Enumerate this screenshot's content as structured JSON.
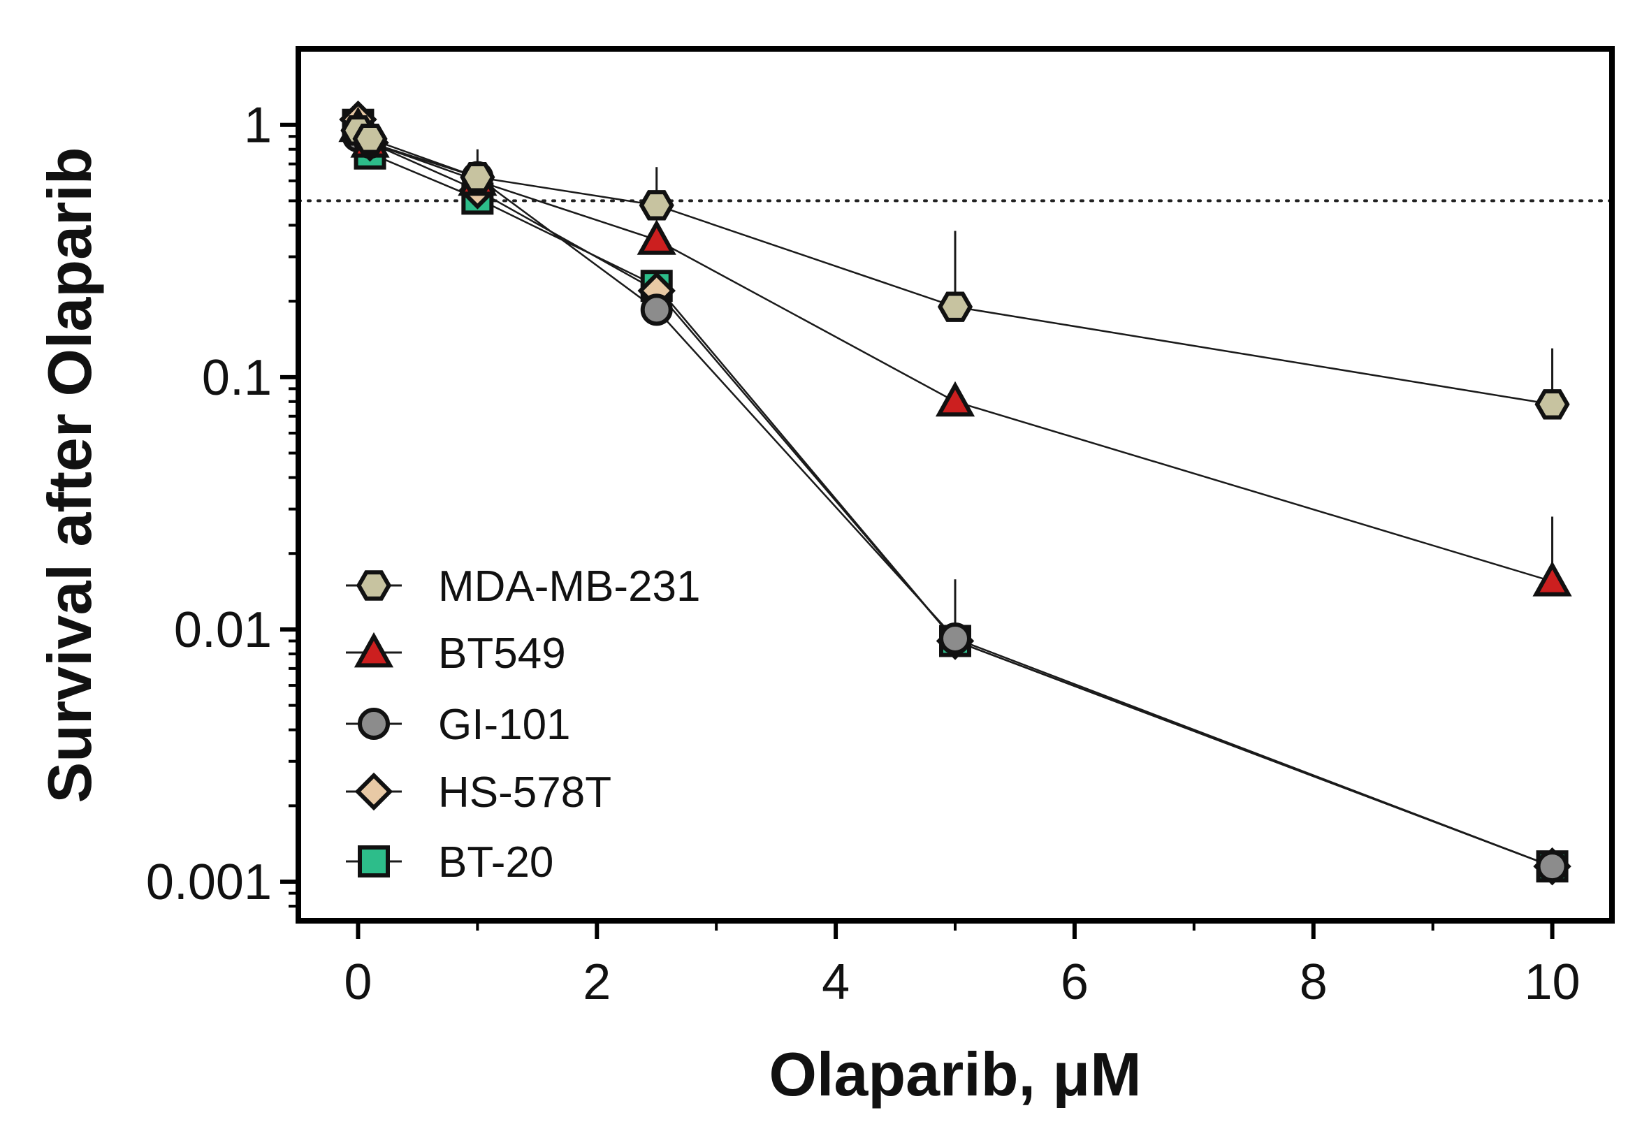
{
  "chart_data": {
    "type": "line",
    "title": "",
    "xlabel": "Olaparib, μM",
    "ylabel": "Survival after Olaparib",
    "yscale": "log",
    "xlim": [
      -0.5,
      10.5
    ],
    "ylim": [
      0.0007,
      2.0
    ],
    "xticks": [
      0,
      2,
      4,
      6,
      8,
      10
    ],
    "xtick_labels": [
      "0",
      "2",
      "4",
      "6",
      "8",
      "10"
    ],
    "yticks": [
      1,
      0.1,
      0.01,
      0.001
    ],
    "ytick_labels": [
      "1",
      "0.1",
      "0.01",
      "0.001"
    ],
    "reference_line": {
      "y": 0.5,
      "style": "dotted"
    },
    "legend_position": "bottom-left",
    "series": [
      {
        "name": "MDA-MB-231",
        "marker": "hexagon",
        "color": "#c7c3a0",
        "x": [
          0,
          0.1,
          1,
          2.5,
          5,
          10
        ],
        "y": [
          0.95,
          0.88,
          0.62,
          0.48,
          0.19,
          0.078
        ],
        "err_up": [
          null,
          null,
          0.18,
          0.2,
          0.19,
          0.052
        ]
      },
      {
        "name": "BT549",
        "marker": "triangle",
        "color": "#cc1f1f",
        "x": [
          0,
          0.1,
          1,
          2.5,
          5,
          10
        ],
        "y": [
          0.98,
          0.85,
          0.6,
          0.35,
          0.08,
          0.0155
        ],
        "err_up": [
          null,
          null,
          null,
          null,
          null,
          0.0125
        ]
      },
      {
        "name": "GI-101",
        "marker": "circle",
        "color": "#8c8c8c",
        "x": [
          0,
          0.1,
          1,
          2.5,
          5,
          10
        ],
        "y": [
          0.9,
          0.85,
          0.62,
          0.185,
          0.0092,
          0.00115
        ],
        "err_up": [
          null,
          null,
          null,
          null,
          0.0066,
          null
        ]
      },
      {
        "name": "HS-578T",
        "marker": "diamond",
        "color": "#e8c9a5",
        "x": [
          0,
          0.1,
          1,
          2.5,
          5,
          10
        ],
        "y": [
          1.05,
          0.85,
          0.55,
          0.22,
          0.009,
          0.00115
        ],
        "err_up": [
          null,
          null,
          null,
          null,
          null,
          null
        ]
      },
      {
        "name": "BT-20",
        "marker": "square",
        "color": "#2dbd8a",
        "x": [
          0,
          0.1,
          1,
          2.5,
          5,
          10
        ],
        "y": [
          1.0,
          0.77,
          0.51,
          0.23,
          0.009,
          0.00115
        ],
        "err_up": [
          null,
          null,
          null,
          null,
          null,
          null
        ]
      }
    ]
  }
}
